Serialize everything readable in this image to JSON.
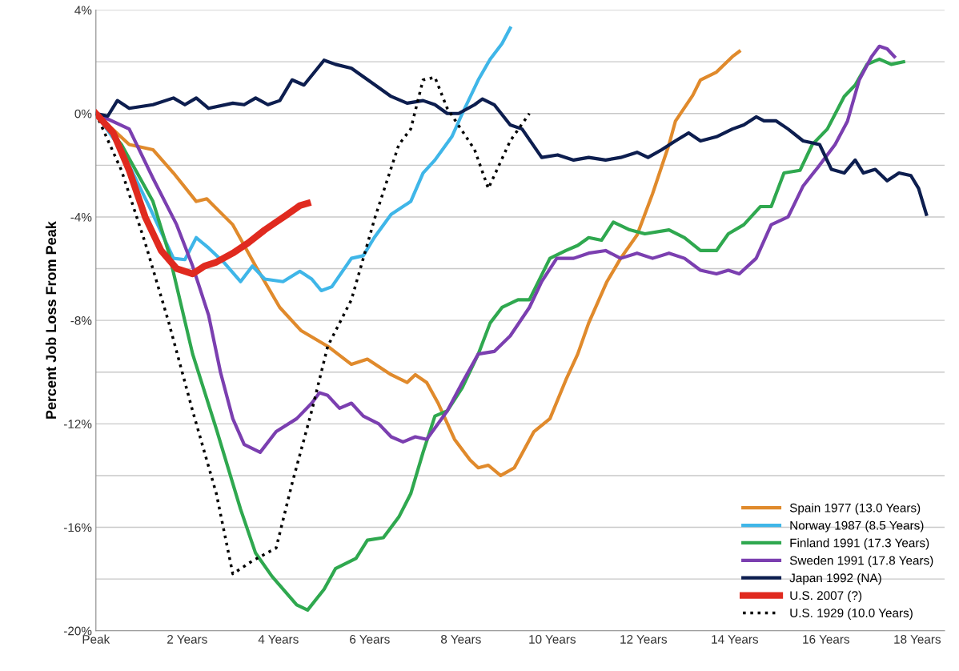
{
  "chart_data": {
    "type": "line",
    "ylabel": "Percent Job Loss From Peak",
    "xlim": [
      0,
      18.6
    ],
    "ylim": [
      -20,
      4
    ],
    "xticks": [
      {
        "value": 0,
        "label": "Peak"
      },
      {
        "value": 2,
        "label": "2 Years"
      },
      {
        "value": 4,
        "label": "4 Years"
      },
      {
        "value": 6,
        "label": "6 Years"
      },
      {
        "value": 8,
        "label": "8 Years"
      },
      {
        "value": 10,
        "label": "10 Years"
      },
      {
        "value": 12,
        "label": "12 Years"
      },
      {
        "value": 14,
        "label": "14 Years"
      },
      {
        "value": 16,
        "label": "16 Years"
      },
      {
        "value": 18,
        "label": "18 Years"
      }
    ],
    "yticks": [
      {
        "value": 4,
        "label": "4%"
      },
      {
        "value": 2,
        "label": null
      },
      {
        "value": 0,
        "label": "0%"
      },
      {
        "value": -2,
        "label": null
      },
      {
        "value": -4,
        "label": "-4%"
      },
      {
        "value": -6,
        "label": null
      },
      {
        "value": -8,
        "label": "-8%"
      },
      {
        "value": -10,
        "label": null
      },
      {
        "value": -12,
        "label": "-12%"
      },
      {
        "value": -14,
        "label": null
      },
      {
        "value": -16,
        "label": "-16%"
      },
      {
        "value": -18,
        "label": null
      },
      {
        "value": -20,
        "label": "-20%"
      }
    ],
    "grid": "y",
    "legend": "bottom right",
    "marker": "none",
    "series": [
      {
        "name": "Spain 1977 (13.0 Years)",
        "color": "#e08a2c",
        "line_style": "solid",
        "x": [
          0,
          0.73,
          1.25,
          1.7,
          2.2,
          2.43,
          3,
          3.5,
          4.03,
          4.5,
          5.08,
          5.6,
          5.95,
          6.47,
          6.82,
          7.0,
          7.25,
          7.5,
          7.86,
          8.2,
          8.38,
          8.6,
          8.87,
          9.17,
          9.6,
          9.95,
          10.3,
          10.56,
          10.8,
          11.2,
          11.5,
          11.86,
          12.2,
          12.56,
          12.7,
          13.08,
          13.25,
          13.6,
          13.95,
          14.1
        ],
        "values": [
          0,
          -1.2,
          -1.4,
          -2.3,
          -3.4,
          -3.3,
          -4.3,
          -5.9,
          -7.5,
          -8.4,
          -9.0,
          -9.7,
          -9.5,
          -10.1,
          -10.4,
          -10.1,
          -10.4,
          -11.2,
          -12.6,
          -13.4,
          -13.7,
          -13.6,
          -14.0,
          -13.7,
          -12.3,
          -11.8,
          -10.3,
          -9.3,
          -8.1,
          -6.5,
          -5.6,
          -4.7,
          -3.1,
          -1.2,
          -0.3,
          0.7,
          1.3,
          1.6,
          2.2,
          2.4
        ]
      },
      {
        "name": "Norway 1987 (8.5 Years)",
        "color": "#3fb6e8",
        "line_style": "solid",
        "x": [
          0,
          0.56,
          1.17,
          1.7,
          1.95,
          2.2,
          2.47,
          2.8,
          3.17,
          3.43,
          3.7,
          4.1,
          4.47,
          4.73,
          4.94,
          5.17,
          5.6,
          5.86,
          6.1,
          6.47,
          6.9,
          7.17,
          7.43,
          7.8,
          8.03,
          8.38,
          8.64,
          8.9,
          9.08
        ],
        "values": [
          0,
          -1.4,
          -3.6,
          -5.6,
          -5.65,
          -4.8,
          -5.2,
          -5.75,
          -6.5,
          -5.9,
          -6.4,
          -6.5,
          -6.1,
          -6.4,
          -6.85,
          -6.7,
          -5.6,
          -5.5,
          -4.8,
          -3.9,
          -3.4,
          -2.3,
          -1.8,
          -0.9,
          0.0,
          1.3,
          2.1,
          2.7,
          3.3
        ]
      },
      {
        "name": "Finland 1991 (17.3 Years)",
        "color": "#2fa84f",
        "line_style": "solid",
        "x": [
          0,
          0.56,
          1.25,
          1.6,
          2.12,
          2.64,
          3.17,
          3.5,
          3.86,
          4.4,
          4.64,
          5.0,
          5.25,
          5.7,
          5.95,
          6.3,
          6.64,
          6.9,
          7.17,
          7.43,
          7.7,
          8.03,
          8.38,
          8.64,
          8.9,
          9.25,
          9.5,
          9.95,
          10.3,
          10.56,
          10.8,
          11.08,
          11.34,
          11.7,
          12.03,
          12.56,
          12.9,
          13.25,
          13.6,
          13.86,
          14.2,
          14.56,
          14.8,
          15.08,
          15.43,
          15.7,
          16.03,
          16.4,
          16.64,
          16.9,
          17.17,
          17.43,
          17.7
        ],
        "values": [
          0,
          -1.2,
          -3.4,
          -5.4,
          -9.3,
          -12.2,
          -15.3,
          -17.0,
          -17.9,
          -19.0,
          -19.2,
          -18.4,
          -17.6,
          -17.2,
          -16.5,
          -16.4,
          -15.6,
          -14.7,
          -13.1,
          -11.7,
          -11.5,
          -10.6,
          -9.3,
          -8.1,
          -7.5,
          -7.2,
          -7.2,
          -5.6,
          -5.3,
          -5.1,
          -4.8,
          -4.9,
          -4.2,
          -4.5,
          -4.65,
          -4.5,
          -4.8,
          -5.3,
          -5.3,
          -4.65,
          -4.3,
          -3.6,
          -3.6,
          -2.3,
          -2.2,
          -1.2,
          -0.6,
          0.66,
          1.1,
          1.9,
          2.1,
          1.9,
          2.0
        ]
      },
      {
        "name": "Sweden 1991 (17.8 Years)",
        "color": "#7b3fb0",
        "line_style": "solid",
        "x": [
          0,
          0.73,
          1.25,
          1.77,
          2.12,
          2.47,
          2.73,
          3.0,
          3.25,
          3.6,
          3.95,
          4.4,
          4.73,
          4.9,
          5.08,
          5.34,
          5.6,
          5.86,
          6.2,
          6.47,
          6.73,
          7.0,
          7.25,
          7.7,
          8.03,
          8.38,
          8.73,
          9.08,
          9.5,
          9.77,
          10.1,
          10.47,
          10.8,
          11.17,
          11.5,
          11.86,
          12.2,
          12.56,
          12.9,
          13.25,
          13.6,
          13.86,
          14.1,
          14.47,
          14.8,
          15.17,
          15.5,
          15.86,
          16.2,
          16.47,
          16.73,
          17.0,
          17.17,
          17.34,
          17.5
        ],
        "values": [
          0,
          -0.6,
          -2.5,
          -4.3,
          -5.9,
          -7.8,
          -10.0,
          -11.8,
          -12.8,
          -13.1,
          -12.3,
          -11.8,
          -11.2,
          -10.8,
          -10.9,
          -11.4,
          -11.2,
          -11.7,
          -12.0,
          -12.5,
          -12.7,
          -12.5,
          -12.6,
          -11.5,
          -10.4,
          -9.3,
          -9.2,
          -8.6,
          -7.5,
          -6.5,
          -5.6,
          -5.6,
          -5.4,
          -5.3,
          -5.6,
          -5.4,
          -5.6,
          -5.4,
          -5.6,
          -6.06,
          -6.2,
          -6.06,
          -6.2,
          -5.6,
          -4.3,
          -4.0,
          -2.8,
          -2.0,
          -1.2,
          -0.3,
          1.3,
          2.2,
          2.6,
          2.5,
          2.2
        ]
      },
      {
        "name": "Japan 1992 (NA)",
        "color": "#0d1e4f",
        "line_style": "solid",
        "x": [
          0,
          0.26,
          0.47,
          0.73,
          1.25,
          1.7,
          1.95,
          2.2,
          2.47,
          3.0,
          3.25,
          3.5,
          3.77,
          4.03,
          4.3,
          4.56,
          5.0,
          5.25,
          5.6,
          6.12,
          6.47,
          6.82,
          7.17,
          7.43,
          7.7,
          7.95,
          8.3,
          8.47,
          8.73,
          9.08,
          9.34,
          9.77,
          10.12,
          10.47,
          10.8,
          11.17,
          11.5,
          11.86,
          12.1,
          12.4,
          12.7,
          12.99,
          13.25,
          13.6,
          13.95,
          14.2,
          14.47,
          14.64,
          14.9,
          15.17,
          15.5,
          15.86,
          16.12,
          16.4,
          16.64,
          16.82,
          17.08,
          17.34,
          17.6,
          17.86,
          18.03,
          18.2
        ],
        "values": [
          0,
          -0.1,
          0.5,
          0.2,
          0.34,
          0.6,
          0.34,
          0.6,
          0.2,
          0.4,
          0.34,
          0.6,
          0.34,
          0.5,
          1.3,
          1.1,
          2.06,
          1.9,
          1.75,
          1.1,
          0.66,
          0.4,
          0.5,
          0.34,
          0.0,
          0.0,
          0.34,
          0.56,
          0.34,
          -0.44,
          -0.6,
          -1.7,
          -1.6,
          -1.8,
          -1.7,
          -1.8,
          -1.7,
          -1.5,
          -1.7,
          -1.4,
          -1.06,
          -0.75,
          -1.06,
          -0.9,
          -0.6,
          -0.44,
          -0.13,
          -0.28,
          -0.28,
          -0.6,
          -1.06,
          -1.2,
          -2.16,
          -2.3,
          -1.8,
          -2.3,
          -2.16,
          -2.6,
          -2.3,
          -2.4,
          -2.9,
          -3.9
        ]
      },
      {
        "name": "U.S. 2007 (?)",
        "color": "#e02a1f",
        "line_style": "solid",
        "x": [
          0,
          0.38,
          0.73,
          1.08,
          1.43,
          1.77,
          2.12,
          2.38,
          2.64,
          3.0,
          3.34,
          3.7,
          3.95,
          4.2,
          4.47,
          4.64
        ],
        "values": [
          0,
          -0.75,
          -2.2,
          -4.0,
          -5.3,
          -6.0,
          -6.2,
          -5.9,
          -5.75,
          -5.4,
          -5.0,
          -4.5,
          -4.2,
          -3.9,
          -3.56,
          -3.47
        ]
      },
      {
        "name": "U.S. 1929 (10.0 Years)",
        "color": "#000000",
        "line_style": "dotted",
        "x": [
          0,
          0.56,
          1.08,
          1.6,
          2.12,
          2.64,
          3.0,
          3.43,
          3.95,
          4.3,
          4.73,
          5.08,
          5.6,
          6.12,
          6.64,
          6.9,
          7.17,
          7.43,
          7.7,
          8.3,
          8.6,
          9.08,
          9.5
        ],
        "values": [
          0,
          -2.2,
          -5.0,
          -8.1,
          -11.5,
          -14.7,
          -17.8,
          -17.3,
          -16.8,
          -14.3,
          -11.5,
          -9.0,
          -7.2,
          -4.0,
          -1.2,
          -0.6,
          1.3,
          1.4,
          0.2,
          -1.4,
          -2.9,
          -1.06,
          0.0
        ]
      }
    ]
  }
}
